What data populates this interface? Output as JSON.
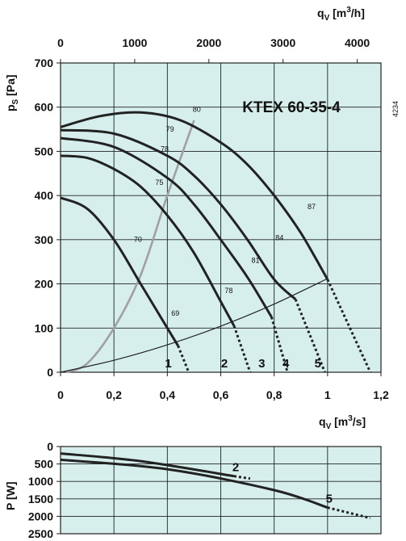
{
  "colors": {
    "panel_bg": "#d6efec",
    "grid": "#222222",
    "curve": "#222222",
    "system_curve": "#a0a0a0"
  },
  "chart_data": [
    {
      "type": "line",
      "title": "KTEX 60-35-4",
      "figure_id": "4234",
      "xlabel": "qV [m3/s]",
      "x2label": "qV [m3/h]",
      "ylabel": "pS [Pa]",
      "xlim": [
        0,
        1.2
      ],
      "ylim": [
        0,
        700
      ],
      "x2lim": [
        0,
        4320
      ],
      "xticks": [
        "0",
        "0,2",
        "0,4",
        "0,6",
        "0,8",
        "1",
        "1,2"
      ],
      "x2ticks": [
        "0",
        "1000",
        "2000",
        "3000",
        "4000"
      ],
      "yticks": [
        "0",
        "100",
        "200",
        "300",
        "400",
        "500",
        "600",
        "700"
      ],
      "grid": true,
      "series": [
        {
          "name": "1",
          "x": [
            0,
            0.1,
            0.2,
            0.3,
            0.4,
            0.44
          ],
          "y": [
            395,
            370,
            300,
            200,
            100,
            60
          ],
          "dashed_x": [
            0.44,
            0.48
          ],
          "dashed_y": [
            60,
            0
          ]
        },
        {
          "name": "2",
          "x": [
            0,
            0.1,
            0.2,
            0.3,
            0.4,
            0.5,
            0.6,
            0.65
          ],
          "y": [
            490,
            485,
            460,
            420,
            355,
            270,
            160,
            105
          ],
          "dashed_x": [
            0.65,
            0.71
          ],
          "dashed_y": [
            105,
            0
          ]
        },
        {
          "name": "3",
          "x": [
            0,
            0.2,
            0.4,
            0.5,
            0.6,
            0.7,
            0.79
          ],
          "y": [
            530,
            510,
            440,
            380,
            300,
            215,
            125
          ],
          "dashed_x": [
            0.79,
            0.85
          ],
          "dashed_y": [
            125,
            0
          ]
        },
        {
          "name": "4",
          "x": [
            0,
            0.2,
            0.4,
            0.5,
            0.6,
            0.7,
            0.8,
            0.88
          ],
          "y": [
            548,
            540,
            490,
            445,
            380,
            300,
            210,
            165
          ],
          "dashed_x": [
            0.88,
            0.99
          ],
          "dashed_y": [
            165,
            0
          ]
        },
        {
          "name": "5",
          "x": [
            0,
            0.15,
            0.3,
            0.45,
            0.6,
            0.7,
            0.8,
            0.9,
            1.0
          ],
          "y": [
            555,
            580,
            588,
            570,
            520,
            470,
            400,
            315,
            210
          ],
          "dashed_x": [
            1.0,
            1.16
          ],
          "dashed_y": [
            210,
            0
          ]
        }
      ],
      "system_curve": {
        "x": [
          0,
          1.0
        ],
        "y": [
          0,
          212
        ]
      },
      "operating_curve": {
        "x": [
          0.02,
          0.1,
          0.2,
          0.3,
          0.4,
          0.5
        ],
        "y": [
          0,
          20,
          100,
          220,
          400,
          570
        ]
      },
      "annotations": [
        "80",
        "79",
        "78",
        "75",
        "70",
        "69",
        "78",
        "81",
        "84",
        "87"
      ]
    },
    {
      "type": "line",
      "xlabel": "qV [m3/s]",
      "ylabel": "P [W]",
      "ylim": [
        2500,
        0
      ],
      "yticks": [
        "0",
        "500",
        "1000",
        "1500",
        "2000",
        "2500"
      ],
      "grid": true,
      "series": [
        {
          "name": "2",
          "x": [
            0,
            0.3,
            0.65
          ],
          "y": [
            200,
            420,
            850
          ],
          "dashed_x": [
            0.65,
            0.71
          ],
          "dashed_y": [
            850,
            920
          ]
        },
        {
          "name": "5",
          "x": [
            0,
            0.4,
            0.8,
            1.0
          ],
          "y": [
            380,
            650,
            1250,
            1750
          ],
          "dashed_x": [
            1.0,
            1.16
          ],
          "dashed_y": [
            1750,
            2050
          ]
        }
      ]
    }
  ]
}
